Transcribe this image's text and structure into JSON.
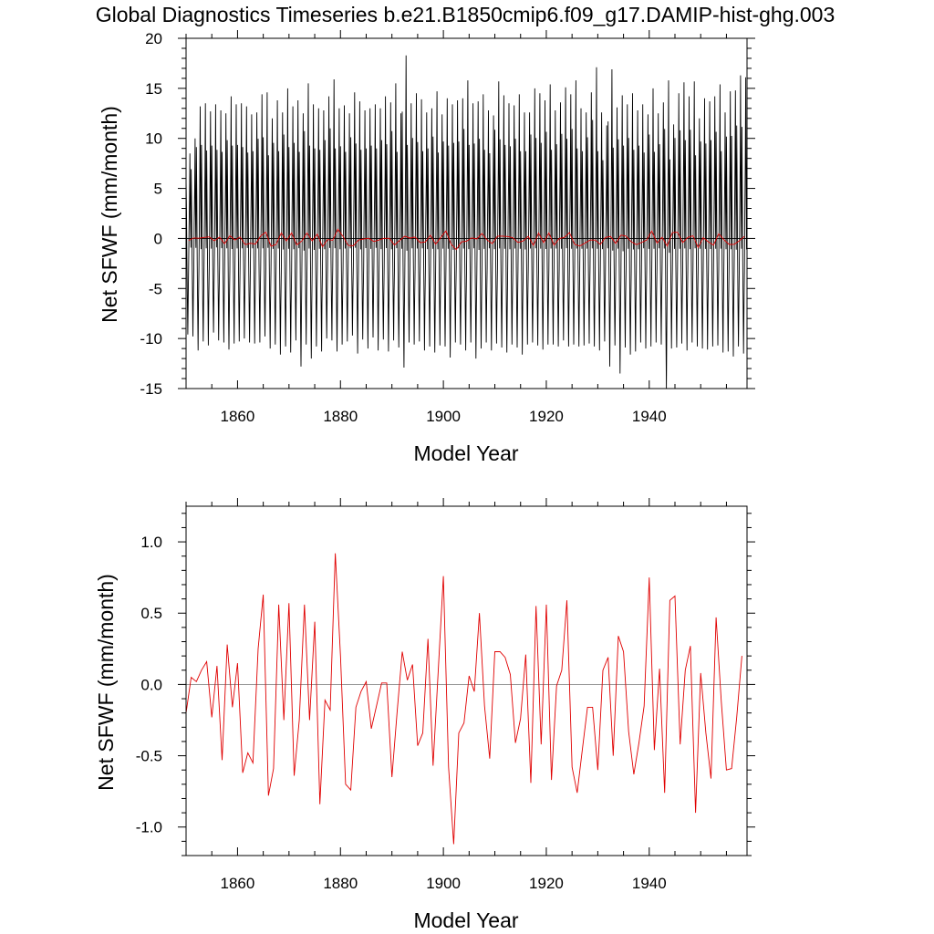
{
  "figure": {
    "title": "Global Diagnostics Timeseries b.e21.B1850cmip6.f09_g17.DAMIP-hist-ghg.003"
  },
  "chart_data": [
    {
      "type": "line",
      "xlabel": "Model Year",
      "ylabel": "Net SFWF (mm/month)",
      "xlim": [
        1850,
        1959
      ],
      "ylim": [
        -15,
        20
      ],
      "x_ticks": [
        1860,
        1880,
        1900,
        1920,
        1940
      ],
      "y_ticks": [
        -15,
        -10,
        -5,
        0,
        5,
        10,
        15,
        20
      ],
      "y_tick_labels": [
        "-15",
        "-10",
        "-5",
        "0",
        "5",
        "10",
        "15",
        "20"
      ],
      "grid": false,
      "legend": "none",
      "reference_line": 0,
      "series": [
        {
          "role": "monthly",
          "color": "#000000",
          "x_start": 1850,
          "step": 0.0833333,
          "seasonal_cycle": [
            9.0,
            4.0,
            -2.0,
            -6.5,
            -10.0,
            -6.0,
            -3.0,
            2.0,
            6.0,
            13.0,
            3.5,
            -1.0
          ],
          "annual_peak_y": [
            8.5,
            10.0,
            13.2,
            13.5,
            12.7,
            13.4,
            12.8,
            12.5,
            14.2,
            13.4,
            13.5,
            13.2,
            12.4,
            12.6,
            14.4,
            14.6,
            12.0,
            13.8,
            12.6,
            15.0,
            13.2,
            13.8,
            12.5,
            15.5,
            13.4,
            13.0,
            12.8,
            14.2,
            15.9,
            13.0,
            13.3,
            12.5,
            14.6,
            13.7,
            12.8,
            13.0,
            13.4,
            13.0,
            14.2,
            13.6,
            15.5,
            12.5,
            18.3,
            13.5,
            14.5,
            13.9,
            12.6,
            13.0,
            14.7,
            12.4,
            14.0,
            13.4,
            13.8,
            14.0,
            15.8,
            13.5,
            13.7,
            14.4,
            12.8,
            12.3,
            15.7,
            14.3,
            13.5,
            13.3,
            14.4,
            12.6,
            12.6,
            15.0,
            14.5,
            13.8,
            15.4,
            12.8,
            13.6,
            15.1,
            14.4,
            15.8,
            13.0,
            12.6,
            14.6,
            17.1,
            12.6,
            11.3,
            16.9,
            13.1,
            14.3,
            13.4,
            14.5,
            12.8,
            13.4,
            12.4,
            15.0,
            12.5,
            13.6,
            15.8,
            11.4,
            14.5,
            15.6,
            14.2,
            15.7,
            12.0,
            14.0,
            13.7,
            14.2,
            15.4,
            12.6,
            14.7,
            14.8,
            16.3,
            16.1,
            14.0
          ],
          "annual_trough_y": [
            -9.6,
            -9.8,
            -11.2,
            -10.3,
            -10.7,
            -9.4,
            -10.2,
            -10.4,
            -11.1,
            -10.5,
            -10.3,
            -10.0,
            -10.4,
            -10.5,
            -10.4,
            -9.8,
            -11.0,
            -10.6,
            -11.6,
            -10.8,
            -11.4,
            -10.2,
            -12.8,
            -10.6,
            -12.0,
            -10.8,
            -11.3,
            -10.0,
            -10.2,
            -11.3,
            -10.6,
            -10.3,
            -9.7,
            -11.5,
            -10.1,
            -11.0,
            -9.9,
            -11.2,
            -10.1,
            -11.3,
            -10.2,
            -10.9,
            -12.9,
            -10.4,
            -10.6,
            -10.3,
            -11.2,
            -10.8,
            -11.4,
            -10.7,
            -10.8,
            -11.9,
            -10.4,
            -10.6,
            -11.2,
            -10.4,
            -12.0,
            -11.0,
            -10.4,
            -11.2,
            -10.5,
            -10.9,
            -11.4,
            -10.6,
            -10.9,
            -11.6,
            -10.6,
            -10.4,
            -10.7,
            -11.1,
            -10.6,
            -10.6,
            -10.8,
            -10.2,
            -10.8,
            -10.6,
            -10.8,
            -10.7,
            -10.5,
            -10.8,
            -11.2,
            -10.3,
            -12.8,
            -10.7,
            -13.5,
            -10.9,
            -11.6,
            -11.3,
            -10.4,
            -11.0,
            -10.8,
            -10.4,
            -10.6,
            -15.0,
            -11.0,
            -10.9,
            -10.5,
            -11.2,
            -10.4,
            -10.8,
            -11.0,
            -11.1,
            -10.8,
            -10.7,
            -11.4,
            -11.3,
            -11.8,
            -10.8,
            -11.5,
            -12.0
          ]
        },
        {
          "role": "annual",
          "color": "#e00000",
          "x_start": 1850.5,
          "step": 1,
          "values_ref": "chart_data.1.values"
        }
      ]
    },
    {
      "type": "line",
      "xlabel": "Model Year",
      "ylabel": "Net SFWF (mm/month)",
      "xlim": [
        1850,
        1959
      ],
      "ylim": [
        -1.2,
        1.25
      ],
      "x_ticks": [
        1860,
        1880,
        1900,
        1920,
        1940
      ],
      "y_ticks": [
        -1.0,
        -0.5,
        0.0,
        0.5,
        1.0
      ],
      "y_tick_labels": [
        "-1.0",
        "-0.5",
        "0.0",
        "0.5",
        "1.0"
      ],
      "grid": false,
      "legend": "none",
      "reference_line": 0,
      "color": "#e00000",
      "x_start": 1850,
      "step": 1,
      "values": [
        -0.2,
        0.05,
        0.02,
        0.1,
        0.16,
        -0.23,
        0.13,
        -0.53,
        0.28,
        -0.16,
        0.15,
        -0.62,
        -0.48,
        -0.55,
        0.25,
        0.63,
        -0.78,
        -0.59,
        0.56,
        -0.25,
        0.57,
        -0.64,
        -0.25,
        0.56,
        -0.25,
        0.44,
        -0.84,
        -0.11,
        -0.18,
        0.92,
        0.2,
        -0.7,
        -0.74,
        -0.16,
        -0.05,
        0.02,
        -0.31,
        -0.15,
        0.01,
        0.01,
        -0.65,
        -0.2,
        0.23,
        0.03,
        0.14,
        -0.43,
        -0.34,
        0.32,
        -0.57,
        0.1,
        0.76,
        -0.58,
        -1.12,
        -0.34,
        -0.27,
        0.06,
        -0.05,
        0.5,
        -0.15,
        -0.52,
        0.23,
        0.23,
        0.19,
        0.07,
        -0.41,
        -0.24,
        0.21,
        -0.69,
        0.55,
        -0.42,
        0.56,
        -0.67,
        -0.01,
        0.1,
        0.59,
        -0.58,
        -0.76,
        -0.46,
        -0.16,
        -0.16,
        -0.6,
        0.1,
        0.19,
        -0.5,
        0.34,
        0.23,
        -0.33,
        -0.63,
        -0.41,
        -0.15,
        0.75,
        -0.46,
        0.11,
        -0.76,
        0.59,
        0.62,
        -0.42,
        0.1,
        0.27,
        -0.9,
        0.08,
        -0.34,
        -0.66,
        0.47,
        -0.12,
        -0.6,
        -0.59,
        -0.23,
        0.2
      ]
    }
  ]
}
